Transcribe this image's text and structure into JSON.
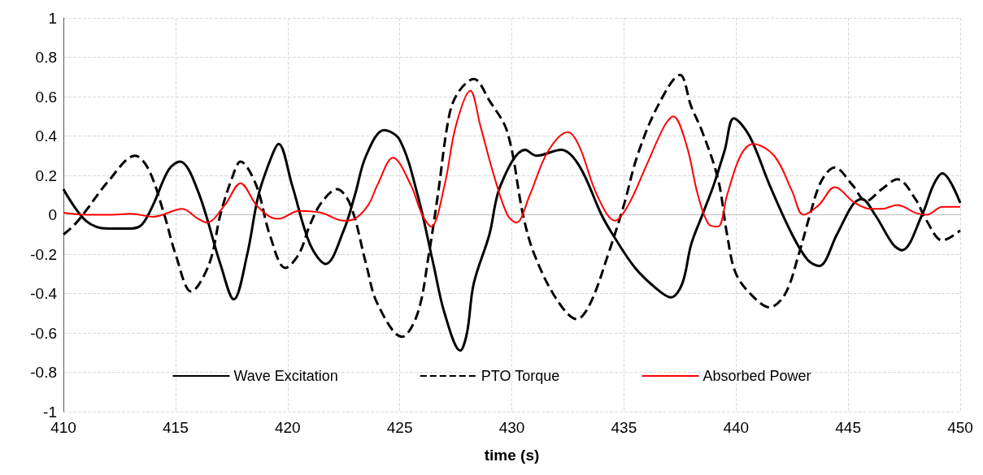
{
  "chart_data": {
    "type": "line",
    "xlabel": "time (s)",
    "xlim": [
      410,
      450
    ],
    "xticks": [
      410,
      415,
      420,
      425,
      430,
      435,
      440,
      445,
      450
    ],
    "ylim": [
      -1,
      1
    ],
    "yticks": [
      -1,
      -0.8,
      -0.6,
      -0.4,
      -0.2,
      0,
      0.2,
      0.4,
      0.6,
      0.8,
      1
    ],
    "grid": "true",
    "legend": "bottom",
    "marker": "none",
    "series": [
      {
        "name": "Wave Excitation",
        "color": "#000000",
        "line_style": "solid",
        "x": [
          410,
          411,
          412,
          413,
          413.5,
          414,
          414.7,
          415.2,
          416,
          417,
          417.6,
          418.2,
          418.7,
          419.3,
          419.6,
          420.2,
          421,
          421.7,
          422.5,
          423,
          423.5,
          424.3,
          425,
          425.8,
          426.5,
          427,
          427.7,
          428,
          428.3,
          429,
          429.5,
          430.6,
          431.1,
          432.2,
          433,
          434,
          434.5,
          435.5,
          436.5,
          437.1,
          437.6,
          438,
          438.5,
          439,
          439.5,
          439.9,
          440.6,
          441.5,
          442.5,
          443.2,
          443.7,
          444.5,
          445.2,
          445.6,
          446.2,
          447,
          447.4,
          448.3,
          448.8,
          449.2,
          450
        ],
        "values": [
          0.13,
          -0.03,
          -0.07,
          -0.07,
          -0.05,
          0.05,
          0.23,
          0.27,
          0.12,
          -0.25,
          -0.43,
          -0.2,
          0.1,
          0.3,
          0.36,
          0.15,
          -0.15,
          -0.25,
          -0.08,
          0.1,
          0.3,
          0.43,
          0.38,
          0.1,
          -0.25,
          -0.5,
          -0.69,
          -0.6,
          -0.35,
          -0.1,
          0.15,
          0.33,
          0.3,
          0.33,
          0.25,
          0,
          -0.1,
          -0.27,
          -0.38,
          -0.42,
          -0.35,
          -0.15,
          0,
          0.15,
          0.33,
          0.49,
          0.4,
          0.15,
          -0.1,
          -0.23,
          -0.26,
          -0.1,
          0.05,
          0.08,
          0,
          -0.15,
          -0.18,
          0,
          0.15,
          0.21,
          0.06
        ]
      },
      {
        "name": "PTO Torque",
        "color": "#000000",
        "line_style": "dashed",
        "x": [
          410,
          410.5,
          411,
          412,
          413.2,
          413.8,
          414.5,
          415,
          415.7,
          416.5,
          417,
          417.5,
          417.9,
          418.6,
          419.2,
          419.9,
          420.5,
          421,
          421.5,
          422.2,
          422.8,
          423.5,
          424,
          425.1,
          425.8,
          426.3,
          426.7,
          427.2,
          427.6,
          428.3,
          429,
          429.8,
          430.5,
          431,
          432,
          432.9,
          433.5,
          434.3,
          435,
          435.6,
          436.5,
          437.5,
          438,
          438.5,
          439.2,
          439.6,
          440,
          440.8,
          441.5,
          442.2,
          442.8,
          443.3,
          443.8,
          444.4,
          445.2,
          445.8,
          446.5,
          447.2,
          448,
          448.5,
          449.2,
          450
        ],
        "values": [
          -0.1,
          -0.05,
          0.02,
          0.17,
          0.3,
          0.23,
          0,
          -0.2,
          -0.39,
          -0.25,
          0,
          0.18,
          0.27,
          0.15,
          -0.1,
          -0.27,
          -0.2,
          -0.05,
          0.06,
          0.13,
          0.05,
          -0.25,
          -0.45,
          -0.62,
          -0.5,
          -0.2,
          0.1,
          0.5,
          0.62,
          0.69,
          0.58,
          0.42,
          0,
          -0.2,
          -0.43,
          -0.53,
          -0.45,
          -0.2,
          0.05,
          0.3,
          0.55,
          0.71,
          0.55,
          0.42,
          0.18,
          -0.1,
          -0.3,
          -0.42,
          -0.47,
          -0.4,
          -0.2,
          0,
          0.17,
          0.24,
          0.15,
          0.07,
          0.13,
          0.18,
          0.08,
          -0.03,
          -0.13,
          -0.08
        ]
      },
      {
        "name": "Absorbed Power",
        "color": "#ff0000",
        "line_style": "solid",
        "x": [
          410,
          411,
          412,
          413,
          414,
          415.3,
          416,
          416.4,
          417.2,
          417.9,
          418.6,
          419.2,
          419.6,
          420.5,
          421.5,
          422.5,
          423,
          423.6,
          424,
          424.7,
          425.5,
          426,
          426.4,
          427,
          427.5,
          428.15,
          428.6,
          429.2,
          429.8,
          430.2,
          430.8,
          431.6,
          432.5,
          433,
          433.8,
          434.6,
          435.2,
          436,
          436.8,
          437.2,
          437.8,
          438.3,
          438.8,
          439.2,
          439.6,
          440.2,
          440.75,
          441.7,
          442.5,
          443,
          443.7,
          444.4,
          445.3,
          446,
          446.5,
          447.2,
          448,
          448.5,
          449.2,
          450
        ],
        "values": [
          0.01,
          0,
          0,
          0.005,
          -0.01,
          0.03,
          -0.02,
          -0.04,
          0.05,
          0.16,
          0.05,
          -0.01,
          -0.02,
          0.02,
          0.01,
          -0.03,
          -0.02,
          0.05,
          0.15,
          0.29,
          0.15,
          0,
          -0.06,
          0.15,
          0.45,
          0.63,
          0.45,
          0.2,
          0,
          -0.04,
          0.1,
          0.32,
          0.42,
          0.35,
          0.1,
          -0.03,
          0.05,
          0.25,
          0.45,
          0.5,
          0.35,
          0.1,
          -0.05,
          -0.06,
          0.1,
          0.3,
          0.36,
          0.3,
          0.12,
          0,
          0.05,
          0.14,
          0.06,
          0.03,
          0.03,
          0.05,
          0.01,
          0,
          0.04,
          0.04
        ]
      }
    ]
  }
}
